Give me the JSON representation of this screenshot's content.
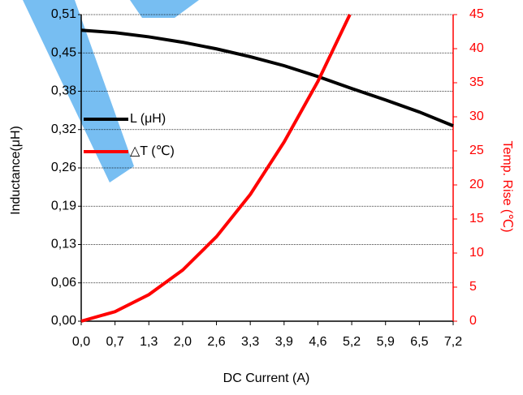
{
  "chart_data": {
    "type": "line",
    "x_label": "DC Current (A)",
    "y_label": "Inductance(μH)",
    "y2_label": "Temp. Rise (℃)",
    "xlim": [
      0,
      7.2
    ],
    "xticks": [
      {
        "value": 0,
        "label": "0,0"
      },
      {
        "value": 0.6545,
        "label": "0,7"
      },
      {
        "value": 1.3091,
        "label": "1,3"
      },
      {
        "value": 1.9636,
        "label": "2,0"
      },
      {
        "value": 2.6182,
        "label": "2,6"
      },
      {
        "value": 3.2727,
        "label": "3,3"
      },
      {
        "value": 3.9273,
        "label": "3,9"
      },
      {
        "value": 4.5818,
        "label": "4,6"
      },
      {
        "value": 5.2364,
        "label": "5,2"
      },
      {
        "value": 5.8909,
        "label": "5,9"
      },
      {
        "value": 6.5455,
        "label": "6,5"
      },
      {
        "value": 7.2,
        "label": "7,2"
      }
    ],
    "ylim": [
      0,
      0.51
    ],
    "yticks": [
      {
        "value": 0,
        "label": "0,00"
      },
      {
        "value": 0.06375,
        "label": "0,06"
      },
      {
        "value": 0.1275,
        "label": "0,13"
      },
      {
        "value": 0.19125,
        "label": "0,19"
      },
      {
        "value": 0.255,
        "label": "0,26"
      },
      {
        "value": 0.31875,
        "label": "0,32"
      },
      {
        "value": 0.3825,
        "label": "0,38"
      },
      {
        "value": 0.44625,
        "label": "0,45"
      },
      {
        "value": 0.51,
        "label": "0,51"
      }
    ],
    "y2lim": [
      0,
      45
    ],
    "y2ticks": [
      0,
      5,
      10,
      15,
      20,
      25,
      30,
      35,
      40,
      45
    ],
    "y2_color": "#ff0000",
    "grid": true,
    "legend": "upper-left",
    "series": [
      {
        "name": "L (μH)",
        "color": "#000000",
        "x": [
          0,
          0.6545,
          1.3091,
          1.9636,
          2.6182,
          3.2727,
          3.9273,
          4.5818,
          5.2364,
          5.8909,
          6.5455,
          7.2
        ],
        "values": [
          0.484,
          0.48,
          0.473,
          0.464,
          0.453,
          0.44,
          0.425,
          0.407,
          0.387,
          0.368,
          0.348,
          0.325
        ]
      },
      {
        "name": "△T (℃)",
        "color": "#ff0000",
        "axis": "y2",
        "x": [
          0,
          0.6545,
          1.3091,
          1.9636,
          2.6182,
          3.2727,
          3.9273,
          4.5818,
          5.2
        ],
        "values": [
          0,
          1.4,
          3.9,
          7.5,
          12.4,
          18.6,
          26.3,
          35.2,
          45
        ]
      }
    ]
  }
}
